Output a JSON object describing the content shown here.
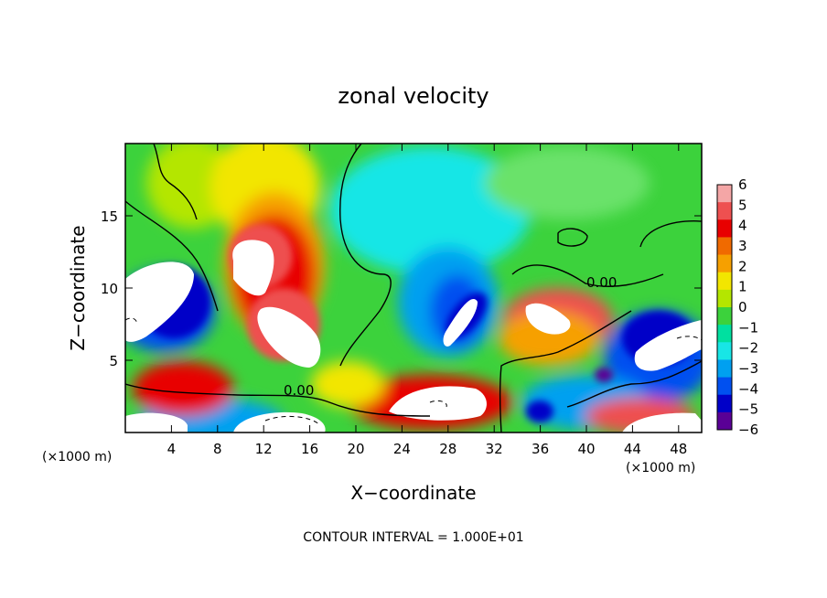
{
  "chart_data": {
    "type": "heatmap",
    "title": "zonal velocity",
    "xlabel": "X−coordinate",
    "ylabel": "Z−coordinate",
    "x_unit_left": "(×1000 m)",
    "x_unit_right": "(×1000 m)",
    "xlim": [
      0,
      50
    ],
    "ylim": [
      0,
      20
    ],
    "x_ticks": [
      4,
      8,
      12,
      16,
      20,
      24,
      28,
      32,
      36,
      40,
      44,
      48
    ],
    "y_ticks": [
      5,
      10,
      15
    ],
    "colorbar": {
      "min": -6,
      "max": 6,
      "ticks": [
        6,
        5,
        4,
        3,
        2,
        1,
        0,
        -1,
        -2,
        -3,
        -4,
        -5,
        -6
      ],
      "colors": [
        "#f4a6a6",
        "#ee5050",
        "#e80000",
        "#f06a00",
        "#f6a000",
        "#f2e600",
        "#b4e600",
        "#3cd23c",
        "#00e0a0",
        "#18e6e6",
        "#00a0f0",
        "#0050f0",
        "#0000c8",
        "#5a0096"
      ]
    },
    "features": [
      {
        "x": 10,
        "z": 9.5,
        "value": 6
      },
      {
        "x": 12,
        "z": 5.5,
        "value": 6
      },
      {
        "x": 28,
        "z": 2.5,
        "value": 6
      },
      {
        "x": 36,
        "z": 7.5,
        "value": 6
      },
      {
        "x": 29,
        "z": 7.5,
        "value": -6
      },
      {
        "x": 3,
        "z": 10,
        "value": -6
      },
      {
        "x": 46,
        "z": 6,
        "value": -6
      }
    ],
    "contour_labels": [
      {
        "x": 41,
        "z": 10.3,
        "text": "0.00"
      },
      {
        "x": 15,
        "z": 2.8,
        "text": "0.00"
      }
    ],
    "footer": "CONTOUR INTERVAL = 1.000E+01"
  }
}
